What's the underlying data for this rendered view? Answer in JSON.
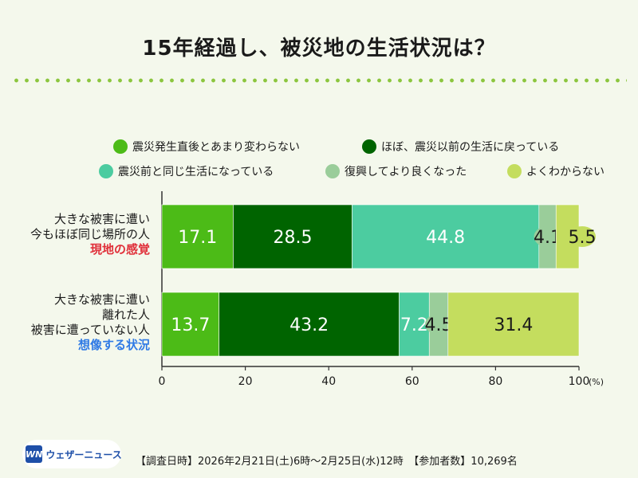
{
  "title": "15年経過し、被災地の生活状況は？",
  "colors": {
    "background": "#f4f8ec",
    "dots": "#8cc63f",
    "region_note": "#e0303a",
    "imagined_note": "#2f7ae5"
  },
  "legend": [
    {
      "label": "震災発生直後とあまり変わらない",
      "color": "#4cbb17"
    },
    {
      "label": "ほぼ、震災以前の生活に戻っている",
      "color": "#006400"
    },
    {
      "label": "震災前と同じ生活になっている",
      "color": "#4ccca0"
    },
    {
      "label": "復興してより良くなった",
      "color": "#9acd9a"
    },
    {
      "label": "よくわからない",
      "color": "#c4dd5e"
    }
  ],
  "rows": [
    {
      "lines": [
        "大きな被害に遭い",
        "今もほぼ同じ場所の人"
      ],
      "note": "現地の感覚"
    },
    {
      "lines": [
        "大きな被害に遭い",
        "離れた人",
        "被害に遭っていない人"
      ],
      "note": "想像する状況"
    }
  ],
  "chart_data": {
    "type": "bar",
    "orientation": "horizontal",
    "stacked": true,
    "categories": [
      "現地の感覚",
      "想像する状況"
    ],
    "series": [
      {
        "name": "震災発生直後とあまり変わらない",
        "values": [
          17.1,
          13.7
        ]
      },
      {
        "name": "ほぼ、震災以前の生活に戻っている",
        "values": [
          28.5,
          43.2
        ]
      },
      {
        "name": "震災前と同じ生活になっている",
        "values": [
          44.8,
          7.2
        ]
      },
      {
        "name": "復興してより良くなった",
        "values": [
          4.1,
          4.5
        ]
      },
      {
        "name": "よくわからない",
        "values": [
          5.5,
          31.4
        ]
      }
    ],
    "xlim": [
      0,
      100
    ],
    "xticks": [
      0,
      20,
      40,
      60,
      80,
      100
    ],
    "xunit": "(%)"
  },
  "footer": {
    "logo_mark": "WN",
    "logo_text": "ウェザーニュース",
    "survey": "【調査日時】2026年2月21日(土)6時～2月25日(水)12時　【参加者数】10,269名"
  }
}
